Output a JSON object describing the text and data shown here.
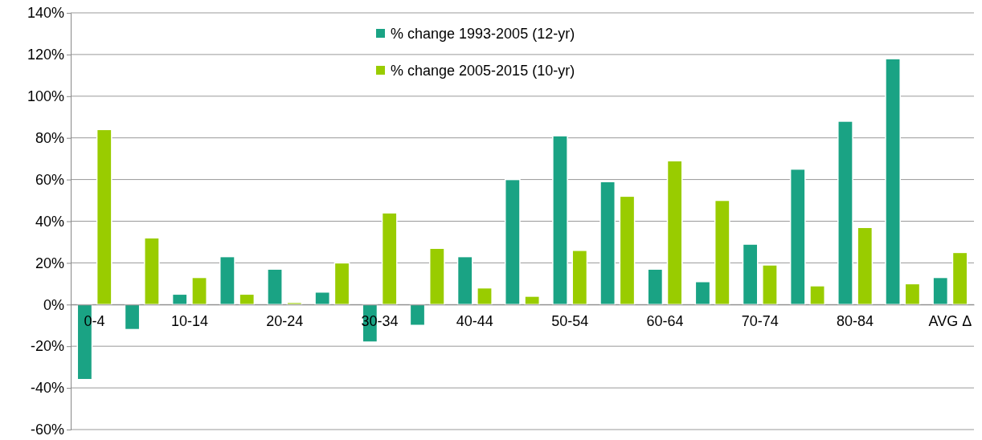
{
  "chart_data": {
    "type": "bar",
    "categories": [
      "0-4",
      null,
      "10-14",
      null,
      "20-24",
      null,
      "30-34",
      null,
      "40-44",
      null,
      "50-54",
      null,
      "60-64",
      null,
      "70-74",
      null,
      "80-84",
      null,
      "AVG Δ"
    ],
    "series": [
      {
        "name": "% change 1993-2005 (12-yr)",
        "color": "#1aa384",
        "values": [
          -36,
          -12,
          5,
          23,
          17,
          6,
          -18,
          -10,
          23,
          60,
          81,
          59,
          17,
          11,
          29,
          65,
          88,
          118,
          13
        ]
      },
      {
        "name": "% change 2005-2015 (10-yr)",
        "color": "#99cc00",
        "values": [
          84,
          32,
          13,
          5,
          1,
          20,
          44,
          27,
          8,
          4,
          26,
          52,
          69,
          50,
          19,
          9,
          37,
          10,
          25
        ]
      }
    ],
    "ylim": [
      -60,
      140
    ],
    "yticks": [
      {
        "value": -60,
        "label": "-60%"
      },
      {
        "value": -40,
        "label": "-40%"
      },
      {
        "value": -20,
        "label": "-20%"
      },
      {
        "value": 0,
        "label": "0%"
      },
      {
        "value": 20,
        "label": "20%"
      },
      {
        "value": 40,
        "label": "40%"
      },
      {
        "value": 60,
        "label": "60%"
      },
      {
        "value": 80,
        "label": "80%"
      },
      {
        "value": 100,
        "label": "100%"
      },
      {
        "value": 120,
        "label": "120%"
      },
      {
        "value": 140,
        "label": "140%"
      }
    ],
    "grid": "y",
    "legend": "top"
  }
}
